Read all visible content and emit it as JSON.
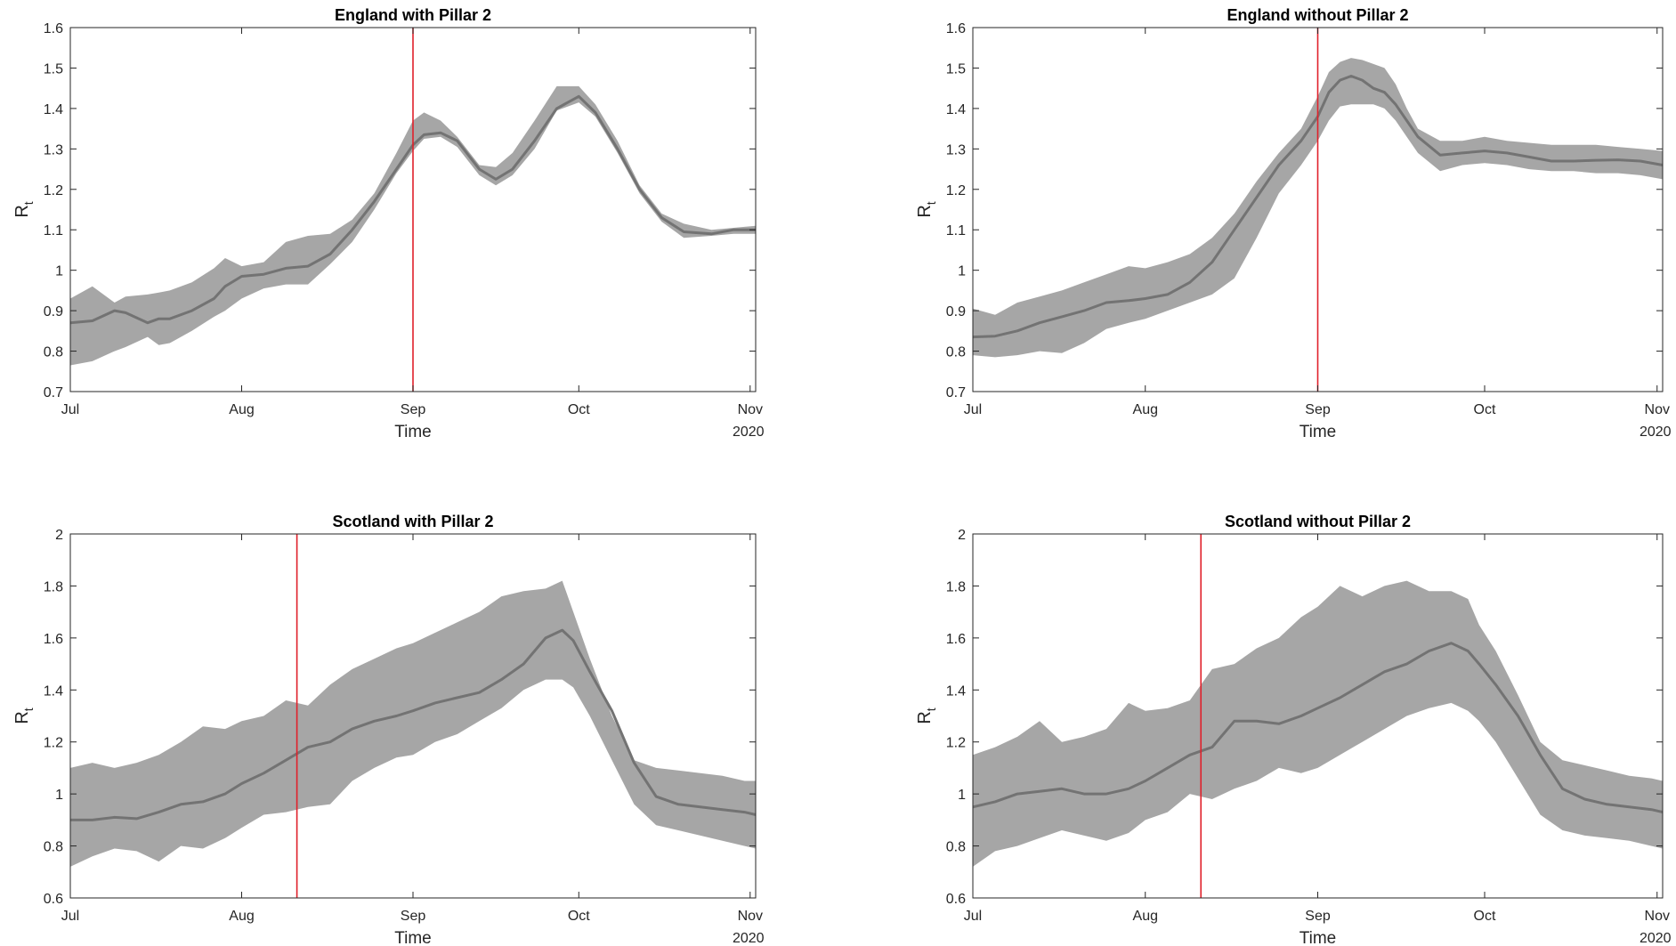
{
  "chart_data": [
    {
      "type": "line",
      "title": "England with Pillar 2",
      "xlabel": "Time",
      "ylabel": "R",
      "ylabel_sub": "t",
      "year_label": "2020",
      "x_ticks": [
        "Jul",
        "Aug",
        "Sep",
        "Oct",
        "Nov"
      ],
      "x_tick_days": [
        0,
        31,
        62,
        92,
        123
      ],
      "xlim_days": [
        0,
        124
      ],
      "ylim": [
        0.7,
        1.6
      ],
      "y_ticks": [
        0.7,
        0.8,
        0.9,
        1,
        1.1,
        1.2,
        1.3,
        1.4,
        1.5,
        1.6
      ],
      "y_tick_labels": [
        "0.7",
        "0.8",
        "0.9",
        "1",
        "1.1",
        "1.2",
        "1.3",
        "1.4",
        "1.5",
        "1.6"
      ],
      "vline_day": 62,
      "vline_color": "#e0202a",
      "band_color": "#a6a6a6",
      "line_color": "#737373",
      "series": [
        {
          "x_days": [
            0,
            4,
            8,
            10,
            14,
            16,
            18,
            22,
            26,
            28,
            31,
            35,
            39,
            43,
            47,
            51,
            55,
            59,
            62,
            64,
            67,
            70,
            74,
            77,
            80,
            84,
            88,
            92,
            95,
            99,
            103,
            107,
            111,
            116,
            120,
            124
          ],
          "mean": [
            0.87,
            0.875,
            0.9,
            0.895,
            0.87,
            0.88,
            0.88,
            0.9,
            0.93,
            0.96,
            0.985,
            0.99,
            1.005,
            1.01,
            1.04,
            1.1,
            1.17,
            1.25,
            1.31,
            1.335,
            1.34,
            1.32,
            1.25,
            1.225,
            1.25,
            1.32,
            1.4,
            1.43,
            1.39,
            1.3,
            1.2,
            1.13,
            1.095,
            1.09,
            1.1,
            1.1
          ],
          "lower": [
            0.765,
            0.775,
            0.8,
            0.81,
            0.835,
            0.815,
            0.82,
            0.85,
            0.885,
            0.9,
            0.93,
            0.955,
            0.965,
            0.965,
            1.015,
            1.07,
            1.15,
            1.24,
            1.295,
            1.325,
            1.33,
            1.305,
            1.235,
            1.21,
            1.235,
            1.3,
            1.395,
            1.415,
            1.38,
            1.29,
            1.19,
            1.12,
            1.08,
            1.085,
            1.09,
            1.09
          ],
          "upper": [
            0.93,
            0.96,
            0.92,
            0.935,
            0.94,
            0.945,
            0.95,
            0.97,
            1.005,
            1.03,
            1.01,
            1.02,
            1.07,
            1.085,
            1.09,
            1.125,
            1.19,
            1.29,
            1.37,
            1.39,
            1.37,
            1.33,
            1.26,
            1.255,
            1.29,
            1.37,
            1.455,
            1.455,
            1.41,
            1.32,
            1.21,
            1.14,
            1.115,
            1.1,
            1.105,
            1.11
          ]
        }
      ]
    },
    {
      "type": "line",
      "title": "England without Pillar 2",
      "xlabel": "Time",
      "ylabel": "R",
      "ylabel_sub": "t",
      "year_label": "2020",
      "x_ticks": [
        "Jul",
        "Aug",
        "Sep",
        "Oct",
        "Nov"
      ],
      "x_tick_days": [
        0,
        31,
        62,
        92,
        123
      ],
      "xlim_days": [
        0,
        124
      ],
      "ylim": [
        0.7,
        1.6
      ],
      "y_ticks": [
        0.7,
        0.8,
        0.9,
        1,
        1.1,
        1.2,
        1.3,
        1.4,
        1.5,
        1.6
      ],
      "y_tick_labels": [
        "0.7",
        "0.8",
        "0.9",
        "1",
        "1.1",
        "1.2",
        "1.3",
        "1.4",
        "1.5",
        "1.6"
      ],
      "vline_day": 62,
      "vline_color": "#e0202a",
      "band_color": "#a6a6a6",
      "line_color": "#737373",
      "series": [
        {
          "x_days": [
            0,
            4,
            8,
            12,
            16,
            20,
            24,
            28,
            31,
            35,
            39,
            43,
            47,
            51,
            55,
            59,
            62,
            64,
            66,
            68,
            70,
            72,
            74,
            76,
            78,
            80,
            84,
            88,
            92,
            96,
            100,
            104,
            108,
            112,
            116,
            120,
            124
          ],
          "mean": [
            0.835,
            0.837,
            0.85,
            0.87,
            0.885,
            0.9,
            0.92,
            0.925,
            0.93,
            0.94,
            0.97,
            1.02,
            1.1,
            1.18,
            1.26,
            1.32,
            1.38,
            1.44,
            1.47,
            1.48,
            1.47,
            1.45,
            1.44,
            1.41,
            1.37,
            1.33,
            1.285,
            1.29,
            1.295,
            1.29,
            1.28,
            1.27,
            1.27,
            1.272,
            1.273,
            1.27,
            1.26
          ],
          "lower": [
            0.79,
            0.785,
            0.79,
            0.8,
            0.795,
            0.82,
            0.855,
            0.87,
            0.88,
            0.9,
            0.92,
            0.94,
            0.98,
            1.08,
            1.19,
            1.26,
            1.32,
            1.37,
            1.405,
            1.41,
            1.41,
            1.41,
            1.4,
            1.37,
            1.33,
            1.29,
            1.245,
            1.26,
            1.265,
            1.26,
            1.25,
            1.245,
            1.245,
            1.24,
            1.24,
            1.235,
            1.225
          ],
          "upper": [
            0.905,
            0.89,
            0.92,
            0.935,
            0.95,
            0.97,
            0.99,
            1.01,
            1.005,
            1.02,
            1.04,
            1.08,
            1.14,
            1.22,
            1.29,
            1.35,
            1.43,
            1.49,
            1.515,
            1.525,
            1.52,
            1.51,
            1.5,
            1.46,
            1.4,
            1.35,
            1.32,
            1.32,
            1.33,
            1.32,
            1.315,
            1.31,
            1.31,
            1.31,
            1.305,
            1.3,
            1.295
          ]
        }
      ]
    },
    {
      "type": "line",
      "title": "Scotland with Pillar 2",
      "xlabel": "Time",
      "ylabel": "R",
      "ylabel_sub": "t",
      "year_label": "2020",
      "x_ticks": [
        "Jul",
        "Aug",
        "Sep",
        "Oct",
        "Nov"
      ],
      "x_tick_days": [
        0,
        31,
        62,
        92,
        123
      ],
      "xlim_days": [
        0,
        124
      ],
      "ylim": [
        0.6,
        2.0
      ],
      "y_ticks": [
        0.6,
        0.8,
        1,
        1.2,
        1.4,
        1.6,
        1.8,
        2
      ],
      "y_tick_labels": [
        "0.6",
        "0.8",
        "1",
        "1.2",
        "1.4",
        "1.6",
        "1.8",
        "2"
      ],
      "vline_day": 41,
      "vline_color": "#e0202a",
      "band_color": "#a6a6a6",
      "line_color": "#737373",
      "series": [
        {
          "x_days": [
            0,
            4,
            8,
            12,
            16,
            20,
            24,
            28,
            31,
            35,
            39,
            43,
            47,
            51,
            55,
            59,
            62,
            66,
            70,
            74,
            78,
            82,
            86,
            89,
            91,
            94,
            98,
            102,
            106,
            110,
            114,
            118,
            122,
            124
          ],
          "mean": [
            0.9,
            0.9,
            0.91,
            0.905,
            0.93,
            0.96,
            0.97,
            1.0,
            1.04,
            1.08,
            1.13,
            1.18,
            1.2,
            1.25,
            1.28,
            1.3,
            1.32,
            1.35,
            1.37,
            1.39,
            1.44,
            1.5,
            1.6,
            1.63,
            1.59,
            1.47,
            1.32,
            1.12,
            0.99,
            0.96,
            0.95,
            0.94,
            0.93,
            0.92
          ],
          "lower": [
            0.72,
            0.76,
            0.79,
            0.78,
            0.74,
            0.8,
            0.79,
            0.83,
            0.87,
            0.92,
            0.93,
            0.95,
            0.96,
            1.05,
            1.1,
            1.14,
            1.15,
            1.2,
            1.23,
            1.28,
            1.33,
            1.4,
            1.44,
            1.44,
            1.41,
            1.3,
            1.13,
            0.96,
            0.88,
            0.86,
            0.84,
            0.82,
            0.8,
            0.79
          ],
          "upper": [
            1.1,
            1.12,
            1.1,
            1.12,
            1.15,
            1.2,
            1.26,
            1.25,
            1.28,
            1.3,
            1.36,
            1.34,
            1.42,
            1.48,
            1.52,
            1.56,
            1.58,
            1.62,
            1.66,
            1.7,
            1.76,
            1.78,
            1.79,
            1.82,
            1.7,
            1.52,
            1.3,
            1.13,
            1.1,
            1.09,
            1.08,
            1.07,
            1.05,
            1.05
          ]
        }
      ]
    },
    {
      "type": "line",
      "title": "Scotland without Pillar 2",
      "xlabel": "Time",
      "ylabel": "R",
      "ylabel_sub": "t",
      "year_label": "2020",
      "x_ticks": [
        "Jul",
        "Aug",
        "Sep",
        "Oct",
        "Nov"
      ],
      "x_tick_days": [
        0,
        31,
        62,
        92,
        123
      ],
      "xlim_days": [
        0,
        124
      ],
      "ylim": [
        0.6,
        2.0
      ],
      "y_ticks": [
        0.6,
        0.8,
        1,
        1.2,
        1.4,
        1.6,
        1.8,
        2
      ],
      "y_tick_labels": [
        "0.6",
        "0.8",
        "1",
        "1.2",
        "1.4",
        "1.6",
        "1.8",
        "2"
      ],
      "vline_day": 41,
      "vline_color": "#e0202a",
      "band_color": "#a6a6a6",
      "line_color": "#737373",
      "series": [
        {
          "x_days": [
            0,
            4,
            8,
            12,
            16,
            20,
            24,
            28,
            31,
            35,
            39,
            43,
            47,
            51,
            55,
            59,
            62,
            66,
            70,
            74,
            78,
            82,
            86,
            89,
            91,
            94,
            98,
            102,
            106,
            110,
            114,
            118,
            122,
            124
          ],
          "mean": [
            0.95,
            0.97,
            1.0,
            1.01,
            1.02,
            1.0,
            1.0,
            1.02,
            1.05,
            1.1,
            1.15,
            1.18,
            1.28,
            1.28,
            1.27,
            1.3,
            1.33,
            1.37,
            1.42,
            1.47,
            1.5,
            1.55,
            1.58,
            1.55,
            1.5,
            1.42,
            1.3,
            1.15,
            1.02,
            0.98,
            0.96,
            0.95,
            0.94,
            0.93
          ],
          "lower": [
            0.72,
            0.78,
            0.8,
            0.83,
            0.86,
            0.84,
            0.82,
            0.85,
            0.9,
            0.93,
            1.0,
            0.98,
            1.02,
            1.05,
            1.1,
            1.08,
            1.1,
            1.15,
            1.2,
            1.25,
            1.3,
            1.33,
            1.35,
            1.32,
            1.28,
            1.2,
            1.06,
            0.92,
            0.86,
            0.84,
            0.83,
            0.82,
            0.8,
            0.79
          ],
          "upper": [
            1.15,
            1.18,
            1.22,
            1.28,
            1.2,
            1.22,
            1.25,
            1.35,
            1.32,
            1.33,
            1.36,
            1.48,
            1.5,
            1.56,
            1.6,
            1.68,
            1.72,
            1.8,
            1.76,
            1.8,
            1.82,
            1.78,
            1.78,
            1.75,
            1.65,
            1.55,
            1.38,
            1.2,
            1.13,
            1.11,
            1.09,
            1.07,
            1.06,
            1.05
          ]
        }
      ]
    }
  ]
}
